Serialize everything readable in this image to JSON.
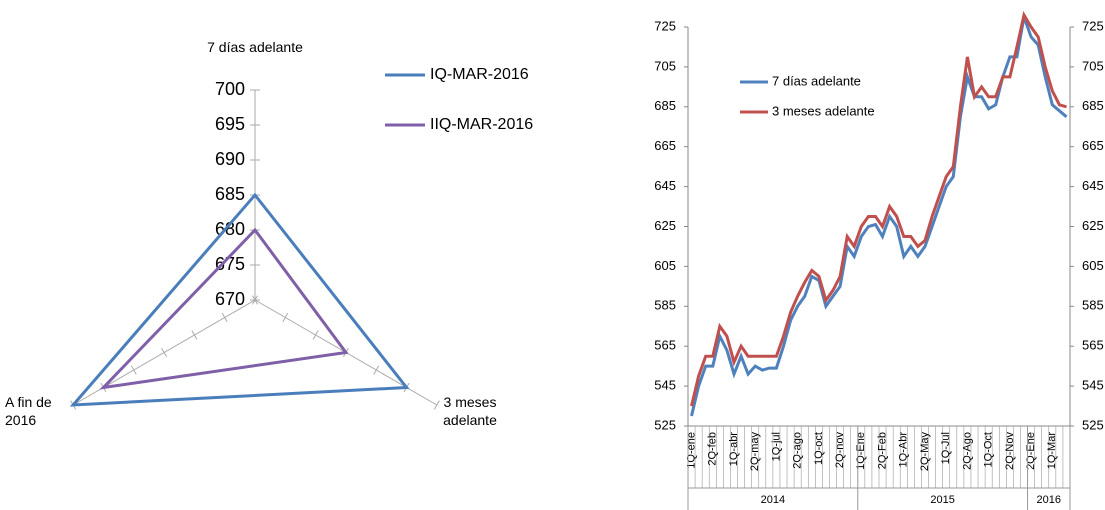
{
  "chart_data": [
    {
      "type": "radar",
      "axes": [
        "7 días adelante",
        "3 meses adelante",
        "A fin de 2016"
      ],
      "rlim": [
        670,
        700
      ],
      "rticks": [
        670,
        675,
        680,
        685,
        690,
        695,
        700
      ],
      "legend": "top-right",
      "series": [
        {
          "name": "IQ-MAR-2016",
          "color": "#4a7ebb",
          "values": [
            685,
            695,
            700
          ]
        },
        {
          "name": "IIQ-MAR-2016",
          "color": "#7f5fa8",
          "values": [
            680,
            685,
            695
          ]
        }
      ]
    },
    {
      "type": "line",
      "categories": [
        "1Q-ene",
        null,
        null,
        "2Q-feb",
        null,
        null,
        "1Q-abr",
        null,
        null,
        "2Q-may",
        null,
        null,
        "1Q-jul",
        null,
        null,
        "2Q-ago",
        null,
        null,
        "1Q-oct",
        null,
        null,
        "2Q-nov",
        null,
        null,
        "1Q-Ene",
        null,
        null,
        "2Q-Feb",
        null,
        null,
        "1Q-Abr",
        null,
        null,
        "2Q-May",
        null,
        null,
        "1Q-Jul",
        null,
        null,
        "2Q-Ago",
        null,
        null,
        "1Q-Oct",
        null,
        null,
        "2Q-Nov",
        null,
        null,
        "2Q-Ene",
        null,
        null,
        "1Q-Mar",
        null,
        null
      ],
      "category_groups": [
        {
          "label": "2014",
          "span": 24
        },
        {
          "label": "2015",
          "span": 24
        },
        {
          "label": "2016",
          "span": 6
        }
      ],
      "ylim": [
        525,
        725
      ],
      "yticks": [
        525,
        545,
        565,
        585,
        605,
        625,
        645,
        665,
        685,
        705,
        725
      ],
      "y2lim": [
        525,
        725
      ],
      "y2ticks": [
        525,
        545,
        565,
        585,
        605,
        625,
        645,
        665,
        685,
        705,
        725
      ],
      "legend": "top-left",
      "series": [
        {
          "name": "7 días adelante",
          "color": "#4f81bd",
          "values": [
            530,
            545,
            555,
            555,
            570,
            563,
            551,
            560,
            551,
            555,
            553,
            554,
            554,
            565,
            578,
            585,
            590,
            600,
            598,
            585,
            590,
            595,
            615,
            610,
            620,
            625,
            626,
            620,
            630,
            625,
            610,
            615,
            610,
            615,
            625,
            635,
            645,
            650,
            680,
            700,
            690,
            690,
            684,
            686,
            700,
            710,
            710,
            730,
            720,
            716,
            700,
            686,
            683,
            680
          ]
        },
        {
          "name": "3 meses adelante",
          "color": "#c0504d",
          "values": [
            535,
            550,
            560,
            560,
            575,
            570,
            557,
            565,
            560,
            560,
            560,
            560,
            560,
            570,
            582,
            590,
            597,
            603,
            600,
            588,
            593,
            600,
            620,
            615,
            625,
            630,
            630,
            625,
            635,
            630,
            620,
            620,
            615,
            618,
            630,
            640,
            650,
            655,
            685,
            710,
            690,
            695,
            690,
            690,
            700,
            700,
            715,
            731,
            725,
            720,
            705,
            693,
            686,
            685
          ]
        }
      ]
    }
  ]
}
